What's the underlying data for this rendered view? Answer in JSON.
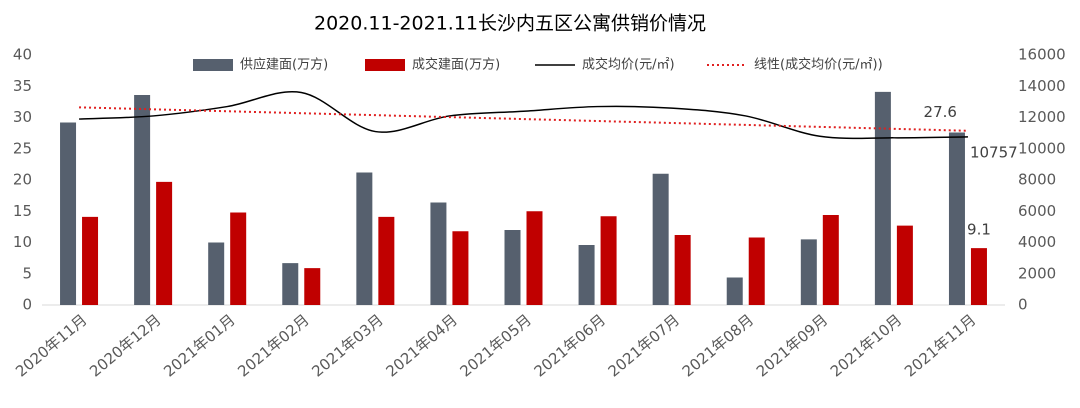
{
  "chart_data": {
    "type": "bar",
    "title": "2020.11-2021.11长沙内五区公寓供销价情况",
    "categories": [
      "2020年11月",
      "2020年12月",
      "2021年01月",
      "2021年02月",
      "2021年03月",
      "2021年04月",
      "2021年05月",
      "2021年06月",
      "2021年07月",
      "2021年08月",
      "2021年09月",
      "2021年10月",
      "2021年11月"
    ],
    "series": [
      {
        "name": "供应建面(万方)",
        "kind": "bar",
        "color": "#56606e",
        "values": [
          29.2,
          33.6,
          10.0,
          6.7,
          21.2,
          16.4,
          12.0,
          9.6,
          21.0,
          4.4,
          10.5,
          34.1,
          27.6
        ]
      },
      {
        "name": "成交建面(万方)",
        "kind": "bar",
        "color": "#c00000",
        "values": [
          14.1,
          19.7,
          14.8,
          5.9,
          14.1,
          11.8,
          15.0,
          14.2,
          11.2,
          10.8,
          14.4,
          12.7,
          9.1
        ]
      },
      {
        "name": "成交均价(元/㎡)",
        "kind": "line",
        "smooth": true,
        "axis": "y2",
        "color": "#000000",
        "values": [
          11900,
          12100,
          12700,
          13600,
          11100,
          12100,
          12400,
          12700,
          12600,
          12100,
          10800,
          10700,
          10757
        ]
      },
      {
        "name": "线性(成交均价(元/㎡))",
        "kind": "line",
        "dotted": true,
        "axis": "y2",
        "color": "#e02020",
        "values": [
          12650,
          12525,
          12400,
          12275,
          12150,
          12025,
          11900,
          11775,
          11650,
          11525,
          11400,
          11275,
          11150
        ]
      }
    ],
    "ylim": [
      0,
      40
    ],
    "yticks": [
      0,
      5,
      10,
      15,
      20,
      25,
      30,
      35,
      40
    ],
    "y2lim": [
      0,
      16000
    ],
    "y2ticks": [
      0,
      2000,
      4000,
      6000,
      8000,
      10000,
      12000,
      14000,
      16000
    ],
    "grid": false
  }
}
